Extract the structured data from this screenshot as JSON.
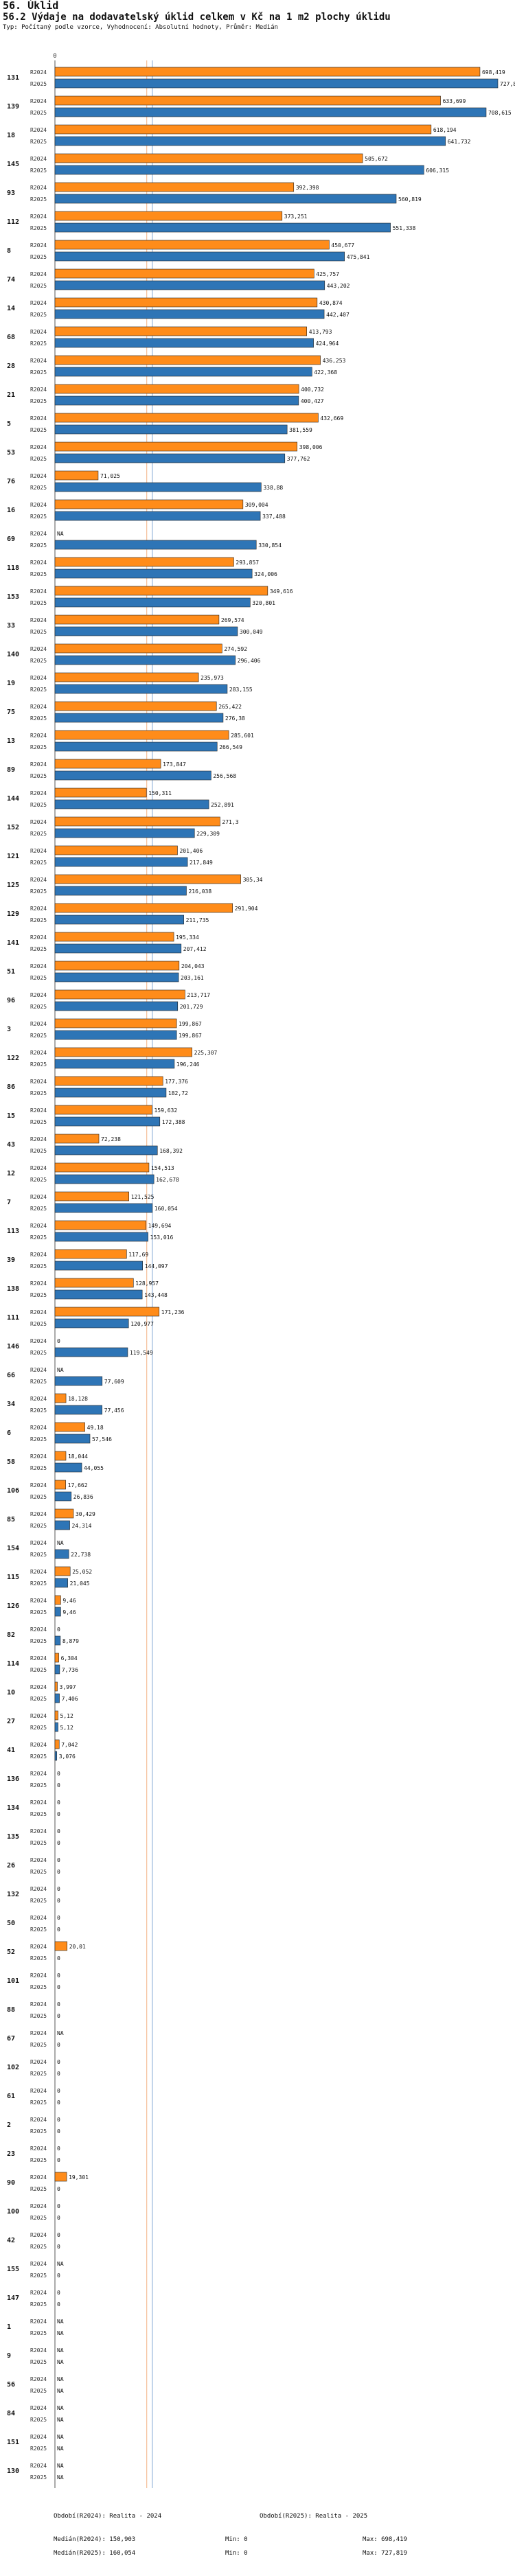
{
  "header": {
    "title": "56. Úklid",
    "subtitle": "56.2 Výdaje na dodavatelský úklid celkem v Kč na 1 m2 plochy úklidu",
    "note": "Typ: Počítaný podle vzorce, Vyhodnocení: Absolutní hodnoty, Průměr: Medián"
  },
  "chart_data": {
    "type": "bar",
    "orientation": "horizontal",
    "title": "56.2 Výdaje na dodavatelský úklid celkem v Kč na 1 m2 plochy úklidu",
    "axis_tick": "0",
    "xlim": [
      0,
      727819
    ],
    "series_labels": [
      "R2024",
      "R2025"
    ],
    "colors": {
      "R2024": "#ff8c1a",
      "R2025": "#2e75b6"
    },
    "median_lines": {
      "R2024": 150903,
      "R2025": 160054
    },
    "categories": [
      {
        "id": "131",
        "v": [
          698419,
          727819
        ],
        "l": [
          "698,419",
          "727,819"
        ]
      },
      {
        "id": "139",
        "v": [
          633699,
          708615
        ],
        "l": [
          "633,699",
          "708,615"
        ]
      },
      {
        "id": "18",
        "v": [
          618194,
          641732
        ],
        "l": [
          "618,194",
          "641,732"
        ]
      },
      {
        "id": "145",
        "v": [
          505672,
          606315
        ],
        "l": [
          "505,672",
          "606,315"
        ]
      },
      {
        "id": "93",
        "v": [
          392398,
          560819
        ],
        "l": [
          "392,398",
          "560,819"
        ]
      },
      {
        "id": "112",
        "v": [
          373251,
          551338
        ],
        "l": [
          "373,251",
          "551,338"
        ]
      },
      {
        "id": "8",
        "v": [
          450677,
          475841
        ],
        "l": [
          "450,677",
          "475,841"
        ]
      },
      {
        "id": "74",
        "v": [
          425757,
          443202
        ],
        "l": [
          "425,757",
          "443,202"
        ]
      },
      {
        "id": "14",
        "v": [
          430874,
          442407
        ],
        "l": [
          "430,874",
          "442,407"
        ]
      },
      {
        "id": "68",
        "v": [
          413793,
          424964
        ],
        "l": [
          "413,793",
          "424,964"
        ]
      },
      {
        "id": "28",
        "v": [
          436253,
          422368
        ],
        "l": [
          "436,253",
          "422,368"
        ]
      },
      {
        "id": "21",
        "v": [
          400732,
          400427
        ],
        "l": [
          "400,732",
          "400,427"
        ]
      },
      {
        "id": "5",
        "v": [
          432669,
          381559
        ],
        "l": [
          "432,669",
          "381,559"
        ]
      },
      {
        "id": "53",
        "v": [
          398006,
          377762
        ],
        "l": [
          "398,006",
          "377,762"
        ]
      },
      {
        "id": "76",
        "v": [
          71025,
          338880
        ],
        "l": [
          "71,025",
          "338,88"
        ]
      },
      {
        "id": "16",
        "v": [
          309004,
          337488
        ],
        "l": [
          "309,004",
          "337,488"
        ]
      },
      {
        "id": "69",
        "v": [
          null,
          330854
        ],
        "l": [
          "NA",
          "330,854"
        ]
      },
      {
        "id": "118",
        "v": [
          293857,
          324006
        ],
        "l": [
          "293,857",
          "324,006"
        ]
      },
      {
        "id": "153",
        "v": [
          349616,
          320801
        ],
        "l": [
          "349,616",
          "320,801"
        ]
      },
      {
        "id": "33",
        "v": [
          269574,
          300049
        ],
        "l": [
          "269,574",
          "300,049"
        ]
      },
      {
        "id": "140",
        "v": [
          274592,
          296406
        ],
        "l": [
          "274,592",
          "296,406"
        ]
      },
      {
        "id": "19",
        "v": [
          235973,
          283155
        ],
        "l": [
          "235,973",
          "283,155"
        ]
      },
      {
        "id": "75",
        "v": [
          265422,
          276380
        ],
        "l": [
          "265,422",
          "276,38"
        ]
      },
      {
        "id": "13",
        "v": [
          285601,
          266549
        ],
        "l": [
          "285,601",
          "266,549"
        ]
      },
      {
        "id": "89",
        "v": [
          173847,
          256568
        ],
        "l": [
          "173,847",
          "256,568"
        ]
      },
      {
        "id": "144",
        "v": [
          150311,
          252891
        ],
        "l": [
          "150,311",
          "252,891"
        ]
      },
      {
        "id": "152",
        "v": [
          271300,
          229309
        ],
        "l": [
          "271,3",
          "229,309"
        ]
      },
      {
        "id": "121",
        "v": [
          201406,
          217849
        ],
        "l": [
          "201,406",
          "217,849"
        ]
      },
      {
        "id": "125",
        "v": [
          305340,
          216038
        ],
        "l": [
          "305,34",
          "216,038"
        ]
      },
      {
        "id": "129",
        "v": [
          291904,
          211735
        ],
        "l": [
          "291,904",
          "211,735"
        ]
      },
      {
        "id": "141",
        "v": [
          195334,
          207412
        ],
        "l": [
          "195,334",
          "207,412"
        ]
      },
      {
        "id": "51",
        "v": [
          204043,
          203161
        ],
        "l": [
          "204,043",
          "203,161"
        ]
      },
      {
        "id": "96",
        "v": [
          213717,
          201729
        ],
        "l": [
          "213,717",
          "201,729"
        ]
      },
      {
        "id": "3",
        "v": [
          199867,
          199867
        ],
        "l": [
          "199,867",
          "199,867"
        ]
      },
      {
        "id": "122",
        "v": [
          225307,
          196246
        ],
        "l": [
          "225,307",
          "196,246"
        ]
      },
      {
        "id": "86",
        "v": [
          177376,
          182720
        ],
        "l": [
          "177,376",
          "182,72"
        ]
      },
      {
        "id": "15",
        "v": [
          159632,
          172388
        ],
        "l": [
          "159,632",
          "172,388"
        ]
      },
      {
        "id": "43",
        "v": [
          72238,
          168392
        ],
        "l": [
          "72,238",
          "168,392"
        ]
      },
      {
        "id": "12",
        "v": [
          154513,
          162678
        ],
        "l": [
          "154,513",
          "162,678"
        ]
      },
      {
        "id": "7",
        "v": [
          121525,
          160054
        ],
        "l": [
          "121,525",
          "160,054"
        ]
      },
      {
        "id": "113",
        "v": [
          149694,
          153016
        ],
        "l": [
          "149,694",
          "153,016"
        ]
      },
      {
        "id": "39",
        "v": [
          117690,
          144097
        ],
        "l": [
          "117,69",
          "144,097"
        ]
      },
      {
        "id": "138",
        "v": [
          128957,
          143448
        ],
        "l": [
          "128,957",
          "143,448"
        ]
      },
      {
        "id": "111",
        "v": [
          171236,
          120977
        ],
        "l": [
          "171,236",
          "120,977"
        ]
      },
      {
        "id": "146",
        "v": [
          0,
          119549
        ],
        "l": [
          "0",
          "119,549"
        ]
      },
      {
        "id": "66",
        "v": [
          null,
          77609
        ],
        "l": [
          "NA",
          "77,609"
        ]
      },
      {
        "id": "34",
        "v": [
          18128,
          77456
        ],
        "l": [
          "18,128",
          "77,456"
        ]
      },
      {
        "id": "6",
        "v": [
          49180,
          57546
        ],
        "l": [
          "49,18",
          "57,546"
        ]
      },
      {
        "id": "58",
        "v": [
          18044,
          44055
        ],
        "l": [
          "18,044",
          "44,055"
        ]
      },
      {
        "id": "106",
        "v": [
          17662,
          26836
        ],
        "l": [
          "17,662",
          "26,836"
        ]
      },
      {
        "id": "85",
        "v": [
          30429,
          24314
        ],
        "l": [
          "30,429",
          "24,314"
        ]
      },
      {
        "id": "154",
        "v": [
          null,
          22738
        ],
        "l": [
          "NA",
          "22,738"
        ]
      },
      {
        "id": "115",
        "v": [
          25052,
          21045
        ],
        "l": [
          "25,052",
          "21,045"
        ]
      },
      {
        "id": "126",
        "v": [
          9460,
          9460
        ],
        "l": [
          "9,46",
          "9,46"
        ]
      },
      {
        "id": "82",
        "v": [
          0,
          8879
        ],
        "l": [
          "0",
          "8,879"
        ]
      },
      {
        "id": "114",
        "v": [
          6304,
          7736
        ],
        "l": [
          "6,304",
          "7,736"
        ]
      },
      {
        "id": "10",
        "v": [
          3997,
          7406
        ],
        "l": [
          "3,997",
          "7,406"
        ]
      },
      {
        "id": "27",
        "v": [
          5120,
          5120
        ],
        "l": [
          "5,12",
          "5,12"
        ]
      },
      {
        "id": "41",
        "v": [
          7042,
          3076
        ],
        "l": [
          "7,042",
          "3,076"
        ]
      },
      {
        "id": "136",
        "v": [
          0,
          0
        ],
        "l": [
          "0",
          "0"
        ]
      },
      {
        "id": "134",
        "v": [
          0,
          0
        ],
        "l": [
          "0",
          "0"
        ]
      },
      {
        "id": "135",
        "v": [
          0,
          0
        ],
        "l": [
          "0",
          "0"
        ]
      },
      {
        "id": "26",
        "v": [
          0,
          0
        ],
        "l": [
          "0",
          "0"
        ]
      },
      {
        "id": "132",
        "v": [
          0,
          0
        ],
        "l": [
          "0",
          "0"
        ]
      },
      {
        "id": "50",
        "v": [
          0,
          0
        ],
        "l": [
          "0",
          "0"
        ]
      },
      {
        "id": "52",
        "v": [
          20010,
          0
        ],
        "l": [
          "20,01",
          "0"
        ]
      },
      {
        "id": "101",
        "v": [
          0,
          0
        ],
        "l": [
          "0",
          "0"
        ]
      },
      {
        "id": "88",
        "v": [
          0,
          0
        ],
        "l": [
          "0",
          "0"
        ]
      },
      {
        "id": "67",
        "v": [
          null,
          0
        ],
        "l": [
          "NA",
          "0"
        ]
      },
      {
        "id": "102",
        "v": [
          0,
          0
        ],
        "l": [
          "0",
          "0"
        ]
      },
      {
        "id": "61",
        "v": [
          0,
          0
        ],
        "l": [
          "0",
          "0"
        ]
      },
      {
        "id": "2",
        "v": [
          0,
          0
        ],
        "l": [
          "0",
          "0"
        ]
      },
      {
        "id": "23",
        "v": [
          0,
          0
        ],
        "l": [
          "0",
          "0"
        ]
      },
      {
        "id": "90",
        "v": [
          19301,
          0
        ],
        "l": [
          "19,301",
          "0"
        ]
      },
      {
        "id": "100",
        "v": [
          0,
          0
        ],
        "l": [
          "0",
          "0"
        ]
      },
      {
        "id": "42",
        "v": [
          0,
          0
        ],
        "l": [
          "0",
          "0"
        ]
      },
      {
        "id": "155",
        "v": [
          null,
          0
        ],
        "l": [
          "NA",
          "0"
        ]
      },
      {
        "id": "147",
        "v": [
          0,
          0
        ],
        "l": [
          "0",
          "0"
        ]
      },
      {
        "id": "1",
        "v": [
          null,
          null
        ],
        "l": [
          "NA",
          "NA"
        ]
      },
      {
        "id": "9",
        "v": [
          null,
          null
        ],
        "l": [
          "NA",
          "NA"
        ]
      },
      {
        "id": "56",
        "v": [
          null,
          null
        ],
        "l": [
          "NA",
          "NA"
        ]
      },
      {
        "id": "84",
        "v": [
          null,
          null
        ],
        "l": [
          "NA",
          "NA"
        ]
      },
      {
        "id": "151",
        "v": [
          null,
          null
        ],
        "l": [
          "NA",
          "NA"
        ]
      },
      {
        "id": "130",
        "v": [
          null,
          null
        ],
        "l": [
          "NA",
          "NA"
        ]
      }
    ]
  },
  "footer": {
    "legend_2024": "Období(R2024): Realita - 2024",
    "legend_2025": "Období(R2025): Realita - 2025",
    "median_2024": "Medián(R2024): 150,903",
    "median_2025": "Medián(R2025): 160,054",
    "min_2024": "Min: 0",
    "min_2025": "Min: 0",
    "max_2024": "Max: 698,419",
    "max_2025": "Max: 727,819"
  }
}
